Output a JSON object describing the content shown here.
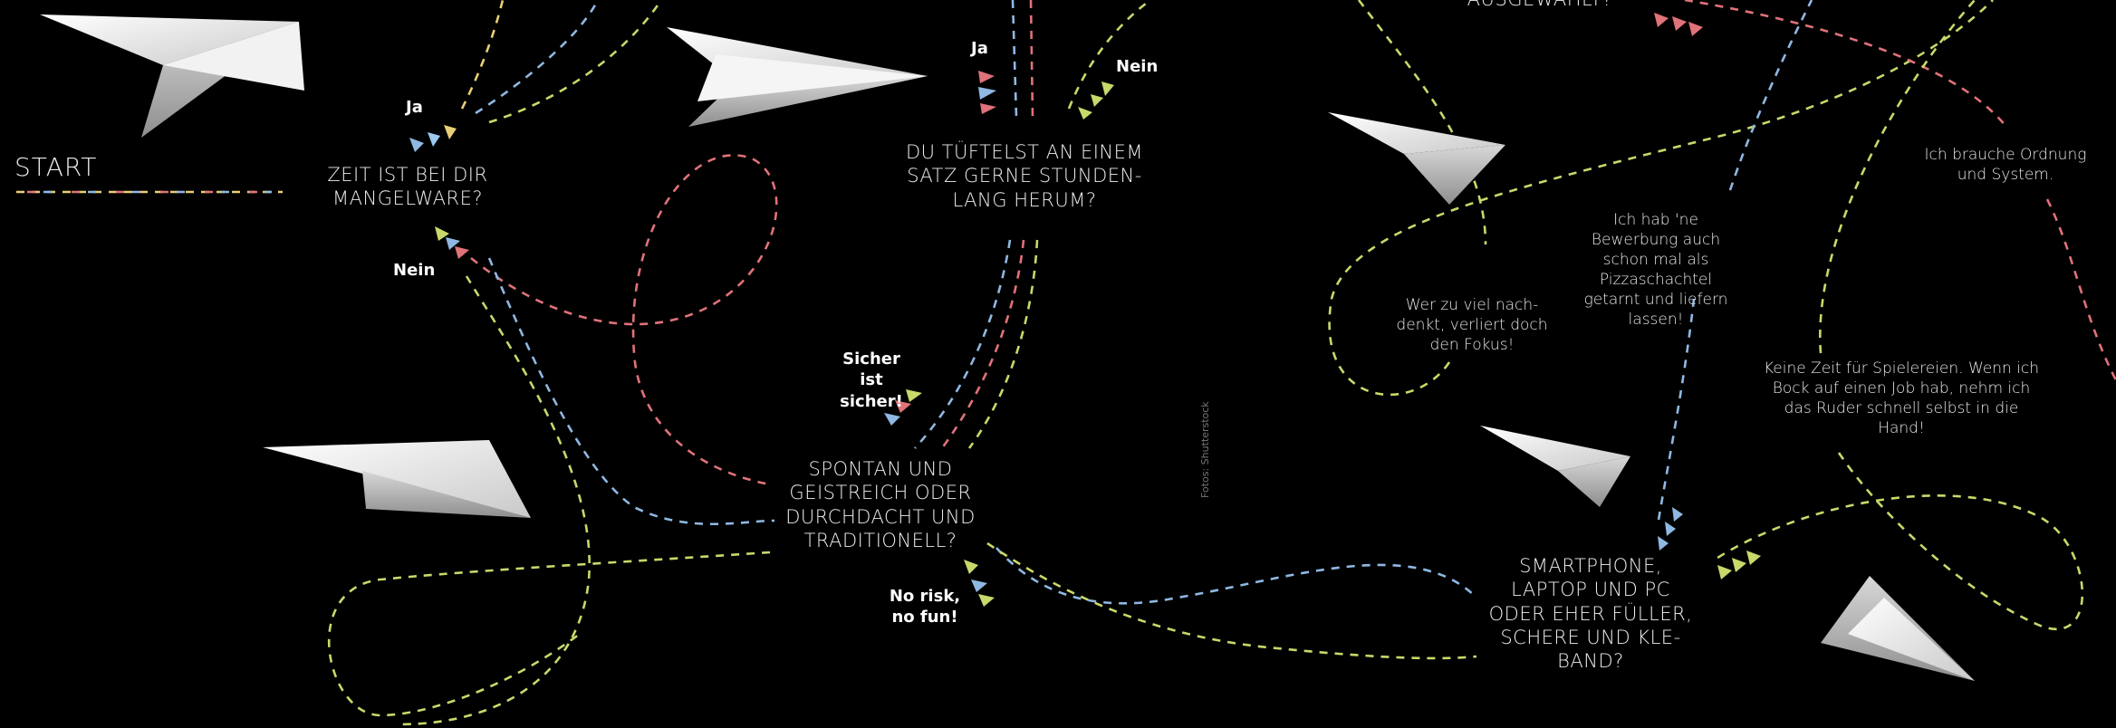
{
  "start": {
    "label": "START"
  },
  "questions": {
    "q_zeit": "ZEIT IST BEI DIR MANGELWARE?",
    "q_tueftel": "DU TÜFTELST AN EINEM SATZ GERNE STUNDEN-LANG HERUM?",
    "q_spontan": "SPONTAN UND GEISTREICH ODER DURCHDACHT UND TRADITIONELL?",
    "q_smartphone": "SMARTPHONE, LAPTOP UND PC ODER EHER FÜLLER, SCHERE UND KLE-BAND?",
    "q_top_cut": "AUSGEWÄHLT?"
  },
  "answers": {
    "ja_1": "Ja",
    "nein_1": "Nein",
    "ja_2": "Ja",
    "nein_2": "Nein",
    "sicher": "Sicher ist sicher!",
    "norisk": "No risk, no fun!"
  },
  "quotes": {
    "fokus": "Wer zu viel nach-denkt, verliert doch den Fokus!",
    "pizza": "Ich hab 'ne Bewerbung auch schon mal als Pizzaschachtel getarnt und liefern lassen!",
    "ordnung": "Ich brauche Ordnung und System.",
    "spielereien": "Keine Zeit für Spielereien. Wenn ich Bock auf einen Job hab, nehm ich das Ruder schnell selbst in die Hand!"
  },
  "credit": "Fotos: Shutterstock",
  "colors": {
    "red": "#e0727a",
    "blue": "#8fb8e3",
    "green": "#c9d86a",
    "yellow": "#e8cf76",
    "background": "#000000"
  }
}
